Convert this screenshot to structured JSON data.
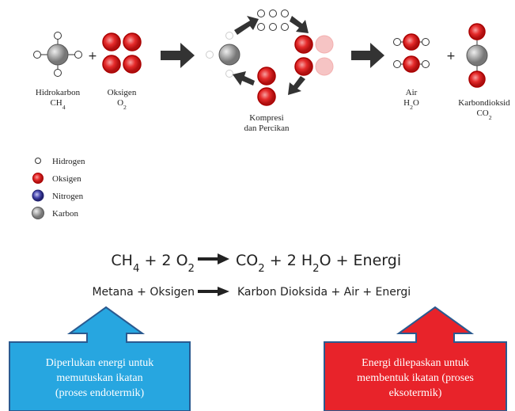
{
  "reactants": {
    "hydrocarbon": {
      "name": "Hidrokarbon",
      "formula": [
        {
          "text": "CH"
        },
        {
          "sub": "4"
        }
      ]
    },
    "oxygen": {
      "name": "Oksigen",
      "formula": [
        {
          "text": "O"
        },
        {
          "sub": "2"
        }
      ]
    }
  },
  "plus": "+",
  "process": [
    "Kompresi",
    "dan Percikan"
  ],
  "products": {
    "water": {
      "name": "Air",
      "formula": [
        {
          "text": "H"
        },
        {
          "sub": "2"
        },
        {
          "text": "O"
        }
      ]
    },
    "co2": {
      "name": "Karbondioksid",
      "formula": [
        {
          "text": "CO"
        },
        {
          "sub": "2"
        }
      ]
    }
  },
  "legend": [
    "Hidrogen",
    "Oksigen",
    "Nitrogen",
    "Karbon"
  ],
  "equation": {
    "left": [
      {
        "text": "CH"
      },
      {
        "sub": "4"
      },
      {
        "text": " + 2 O"
      },
      {
        "sub": "2"
      }
    ],
    "right": [
      {
        "text": "CO"
      },
      {
        "sub": "2"
      },
      {
        "text": " + 2 H"
      },
      {
        "sub": "2"
      },
      {
        "text": "O + Energi"
      }
    ]
  },
  "word_equation": {
    "left": "Metana + Oksigen",
    "right": "Karbon Dioksida + Air + Energi"
  },
  "callouts": {
    "endothermic": [
      "Diperlukan energi untuk",
      "memutuskan ikatan",
      "(proses endotermik)"
    ],
    "exothermic": [
      "Energi dilepaskan untuk",
      "membentuk ikatan (proses",
      "eksotermik)"
    ]
  }
}
